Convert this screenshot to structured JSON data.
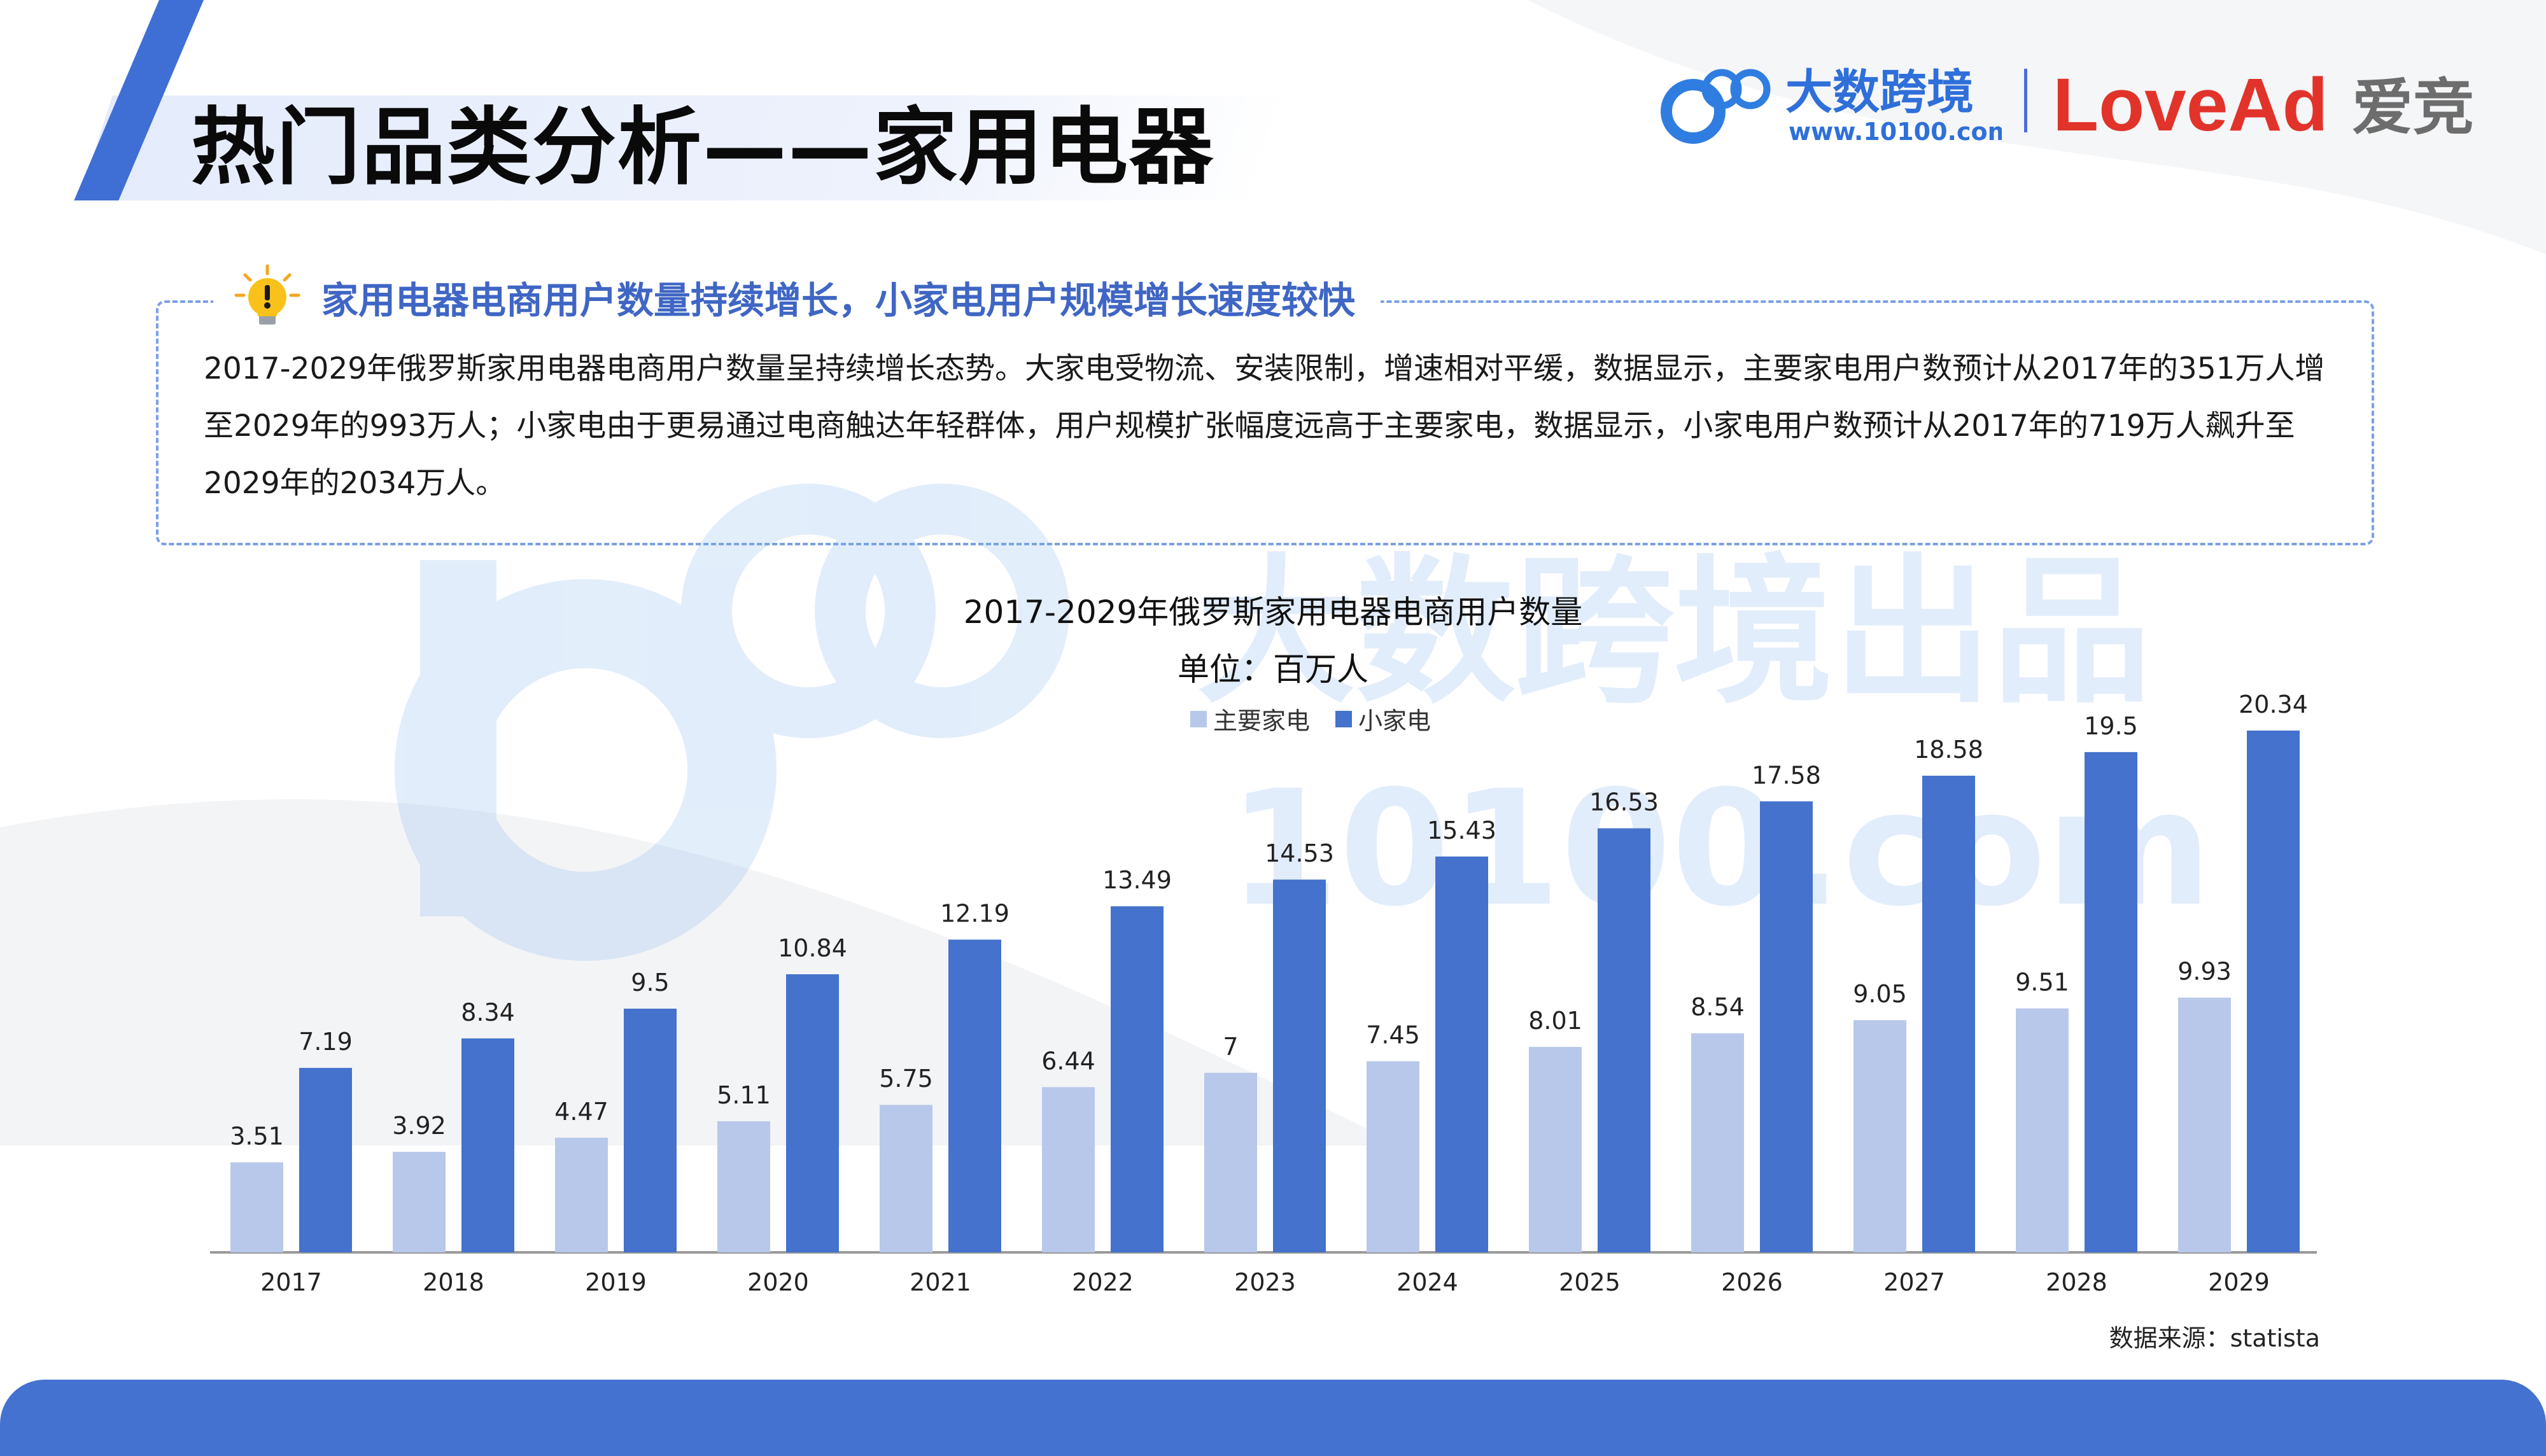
{
  "page_title": "热门品类分析——家用电器",
  "brands": {
    "logo1_text": "大数跨境",
    "logo1_url": "www.10100.com",
    "logo1_mark": "100",
    "logo2_text": "LoveAd",
    "logo2_cn": "爱竞"
  },
  "summary": {
    "heading": "家用电器电商用户数量持续增长，小家电用户规模增长速度较快",
    "paragraph": "2017-2029年俄罗斯家用电器电商用户数量呈持续增长态势。大家电受物流、安装限制，增速相对平缓，数据显示，主要家电用户数预计从2017年的351万人增至2029年的993万人；小家电由于更易通过电商触达年轻群体，用户规模扩张幅度远高于主要家电，数据显示，小家电用户数预计从2017年的719万人飙升至2029年的2034万人。"
  },
  "watermark": {
    "line1": "大数跨境出品",
    "line2": "10100.com"
  },
  "source": "数据来源：statista",
  "colors": {
    "accent": "#3f6fd4",
    "series_major": "#b8c8eb",
    "series_small": "#4472cc",
    "bottom_bar": "#4472d0"
  },
  "chart_data": {
    "type": "bar",
    "title": "2017-2029年俄罗斯家用电器电商用户数量",
    "subtitle": "单位：百万人",
    "categories": [
      "2017",
      "2018",
      "2019",
      "2020",
      "2021",
      "2022",
      "2023",
      "2024",
      "2025",
      "2026",
      "2027",
      "2028",
      "2029"
    ],
    "series": [
      {
        "name": "主要家电",
        "color": "#b8c8eb",
        "values": [
          3.51,
          3.92,
          4.47,
          5.11,
          5.75,
          6.44,
          7,
          7.45,
          8.01,
          8.54,
          9.05,
          9.51,
          9.93
        ]
      },
      {
        "name": "小家电",
        "color": "#4472cc",
        "values": [
          7.19,
          8.34,
          9.5,
          10.84,
          12.19,
          13.49,
          14.53,
          15.43,
          16.53,
          17.58,
          18.58,
          19.5,
          20.34
        ]
      }
    ],
    "ylim": [
      0,
      20.34
    ],
    "legend_position": "top-center",
    "grid": false
  }
}
